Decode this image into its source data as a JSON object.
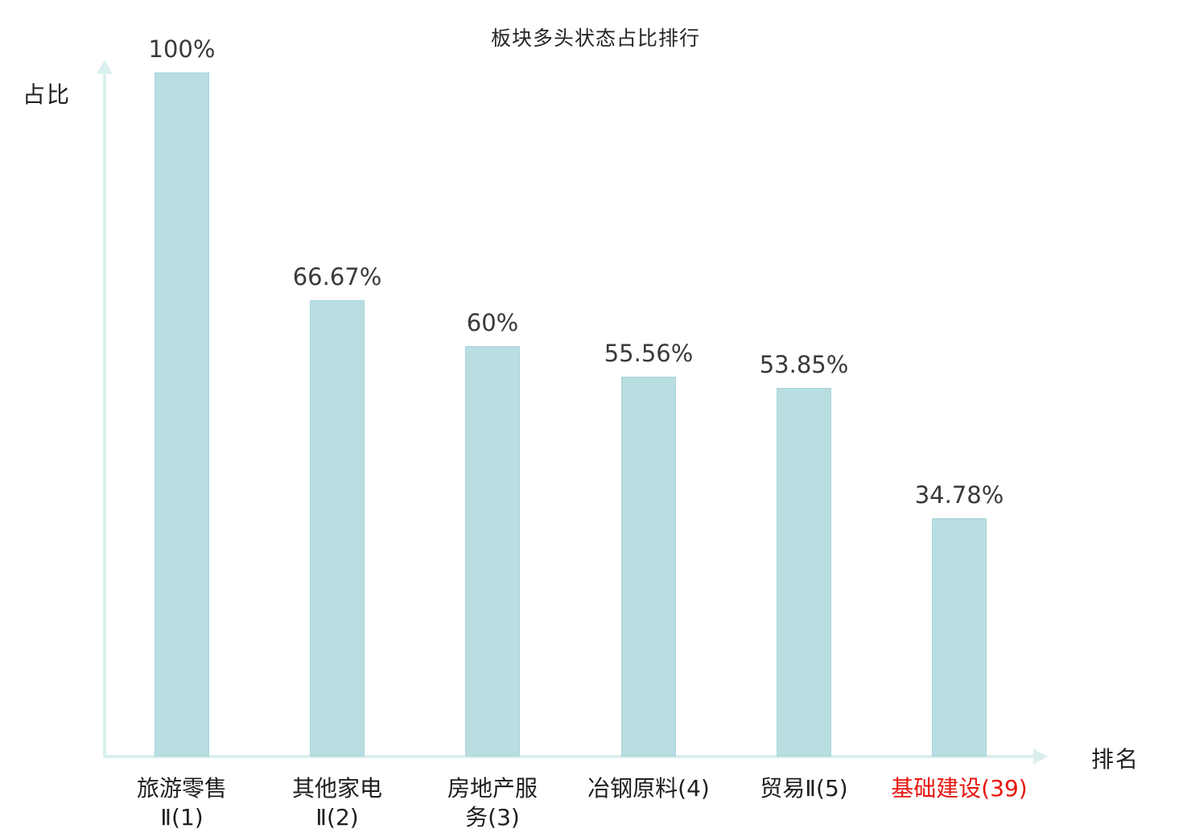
{
  "chart_data": {
    "type": "bar",
    "title": "板块多头状态占比排行",
    "xlabel": "排名",
    "ylabel": "占比",
    "categories": [
      "旅游零售Ⅱ(1)",
      "其他家电Ⅱ(2)",
      "房地产服务(3)",
      "冶钢原料(4)",
      "贸易Ⅱ(5)",
      "基础建设(39)"
    ],
    "category_lines": [
      [
        "旅游零售",
        "Ⅱ(1)"
      ],
      [
        "其他家电",
        "Ⅱ(2)"
      ],
      [
        "房地产服",
        "务(3)"
      ],
      [
        "冶钢原料(4)"
      ],
      [
        "贸易Ⅱ(5)"
      ],
      [
        "基础建设(39)"
      ]
    ],
    "values": [
      100,
      66.67,
      60,
      55.56,
      53.85,
      34.78
    ],
    "value_labels": [
      "100%",
      "66.67%",
      "60%",
      "55.56%",
      "53.85%",
      "34.78%"
    ],
    "highlighted_index": 5,
    "ylim": [
      0,
      100
    ],
    "grid": false,
    "legend": null,
    "colors": {
      "bar_fill": "#b8dee2",
      "bar_edge": "#a9d4da",
      "axis": "#daf0ee",
      "text": "#3a3a3a",
      "category_text": "#1f1f1f",
      "highlight_text": "#e8150f"
    }
  }
}
